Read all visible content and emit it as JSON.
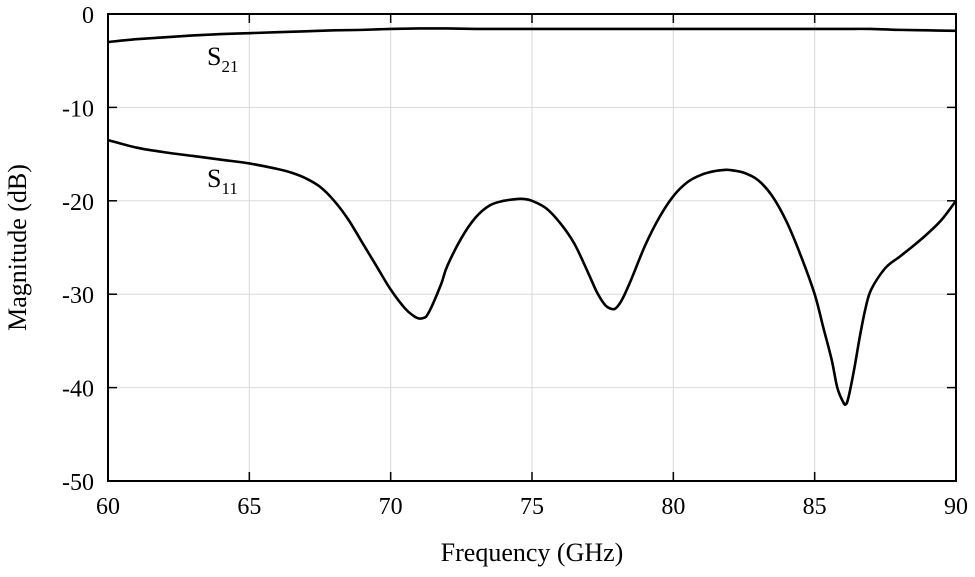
{
  "chart_data": {
    "type": "line",
    "title": "",
    "xlabel": "Frequency (GHz)",
    "ylabel": "Magnitude (dB)",
    "xlim": [
      60,
      90
    ],
    "ylim": [
      -50,
      0
    ],
    "xticks": [
      60,
      65,
      70,
      75,
      80,
      85,
      90
    ],
    "yticks": [
      0,
      -10,
      -20,
      -30,
      -40,
      -50
    ],
    "xtick_labels": [
      "60",
      "65",
      "70",
      "75",
      "80",
      "85",
      "90"
    ],
    "ytick_labels": [
      "0",
      "-10",
      "-20",
      "-30",
      "-40",
      "-50"
    ],
    "grid": true,
    "legend": "none",
    "line_color": "#000000",
    "series": [
      {
        "name": "S21",
        "label_main": "S",
        "label_sub": "21",
        "x": [
          60,
          61,
          62,
          63,
          64,
          65,
          66,
          67,
          68,
          69,
          70,
          71,
          72,
          73,
          74,
          75,
          76,
          77,
          78,
          79,
          80,
          81,
          82,
          83,
          84,
          85,
          86,
          87,
          88,
          89,
          90
        ],
        "values": [
          -3.0,
          -2.7,
          -2.5,
          -2.3,
          -2.15,
          -2.05,
          -1.95,
          -1.85,
          -1.75,
          -1.7,
          -1.6,
          -1.55,
          -1.55,
          -1.6,
          -1.6,
          -1.6,
          -1.6,
          -1.6,
          -1.6,
          -1.6,
          -1.6,
          -1.6,
          -1.6,
          -1.6,
          -1.6,
          -1.6,
          -1.6,
          -1.6,
          -1.7,
          -1.75,
          -1.8
        ]
      },
      {
        "name": "S11",
        "label_main": "S",
        "label_sub": "11",
        "x": [
          60,
          61,
          62,
          63,
          64,
          65,
          66,
          66.5,
          67,
          67.5,
          68,
          68.5,
          69,
          69.5,
          70,
          70.5,
          70.8,
          71.0,
          71.2,
          71.3,
          71.5,
          71.8,
          72,
          72.5,
          73,
          73.5,
          74,
          74.5,
          74.7,
          75,
          75.5,
          76,
          76.5,
          77,
          77.3,
          77.6,
          77.85,
          78.0,
          78.2,
          78.5,
          79,
          79.5,
          80,
          80.5,
          81,
          81.5,
          81.8,
          82,
          82.5,
          83,
          83.5,
          84,
          84.5,
          85,
          85.3,
          85.6,
          85.8,
          86.0,
          86.1,
          86.2,
          86.4,
          86.6,
          86.8,
          87,
          87.5,
          88,
          88.5,
          89,
          89.5,
          90
        ],
        "values": [
          -13.5,
          -14.3,
          -14.8,
          -15.2,
          -15.6,
          -16.0,
          -16.6,
          -17.0,
          -17.6,
          -18.5,
          -20.0,
          -22.0,
          -24.5,
          -27.0,
          -29.5,
          -31.5,
          -32.3,
          -32.6,
          -32.5,
          -32.2,
          -31.0,
          -28.8,
          -27.0,
          -24.0,
          -21.8,
          -20.5,
          -20.0,
          -19.8,
          -19.8,
          -20.0,
          -20.8,
          -22.4,
          -24.6,
          -27.8,
          -29.8,
          -31.2,
          -31.6,
          -31.4,
          -30.5,
          -28.5,
          -24.8,
          -21.8,
          -19.5,
          -18.0,
          -17.2,
          -16.8,
          -16.7,
          -16.7,
          -17.0,
          -17.8,
          -19.5,
          -22.2,
          -25.8,
          -30.0,
          -33.5,
          -37.0,
          -40.0,
          -41.5,
          -41.8,
          -41.0,
          -38.0,
          -34.5,
          -31.5,
          -29.5,
          -27.2,
          -26.0,
          -24.8,
          -23.5,
          -22.0,
          -20.0
        ]
      }
    ]
  }
}
